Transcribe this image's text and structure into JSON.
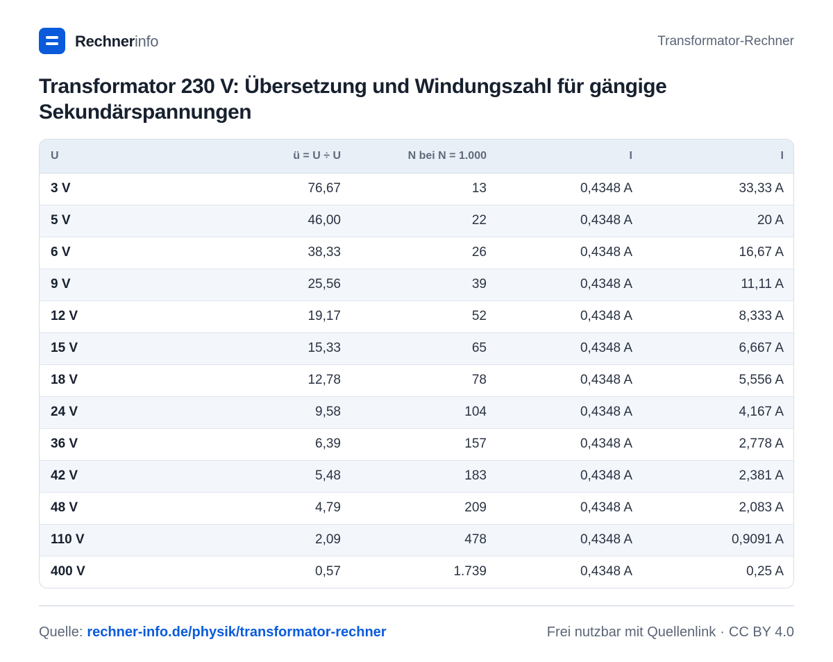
{
  "header": {
    "brand_strong": "Rechner",
    "brand_light": "info",
    "page_name": "Transformator-Rechner"
  },
  "title": "Transformator 230 V: Übersetzung und Windungszahl für gängige Sekundärspannungen",
  "table": {
    "columns": [
      "U",
      "ü = U  ÷ U",
      "N  bei N  = 1.000",
      "I",
      "I"
    ],
    "rows": [
      [
        "3 V",
        "76,67",
        "13",
        "0,4348 A",
        "33,33 A"
      ],
      [
        "5 V",
        "46,00",
        "22",
        "0,4348 A",
        "20 A"
      ],
      [
        "6 V",
        "38,33",
        "26",
        "0,4348 A",
        "16,67 A"
      ],
      [
        "9 V",
        "25,56",
        "39",
        "0,4348 A",
        "11,11 A"
      ],
      [
        "12 V",
        "19,17",
        "52",
        "0,4348 A",
        "8,333 A"
      ],
      [
        "15 V",
        "15,33",
        "65",
        "0,4348 A",
        "6,667 A"
      ],
      [
        "18 V",
        "12,78",
        "78",
        "0,4348 A",
        "5,556 A"
      ],
      [
        "24 V",
        "9,58",
        "104",
        "0,4348 A",
        "4,167 A"
      ],
      [
        "36 V",
        "6,39",
        "157",
        "0,4348 A",
        "2,778 A"
      ],
      [
        "42 V",
        "5,48",
        "183",
        "0,4348 A",
        "2,381 A"
      ],
      [
        "48 V",
        "4,79",
        "209",
        "0,4348 A",
        "2,083 A"
      ],
      [
        "110 V",
        "2,09",
        "478",
        "0,4348 A",
        "0,9091 A"
      ],
      [
        "400 V",
        "0,57",
        "1.739",
        "0,4348 A",
        "0,25 A"
      ]
    ]
  },
  "footer": {
    "source_label": "Quelle:",
    "source_link": "rechner-info.de/physik/transformator-rechner",
    "license_text": "Frei nutzbar mit Quellenlink",
    "separator": "·",
    "license": "CC BY 4.0"
  },
  "colors": {
    "accent": "#0a5bdc",
    "header_bg": "#e9eff7",
    "stripe_bg": "#f3f6fb",
    "border": "#d5dde8"
  }
}
